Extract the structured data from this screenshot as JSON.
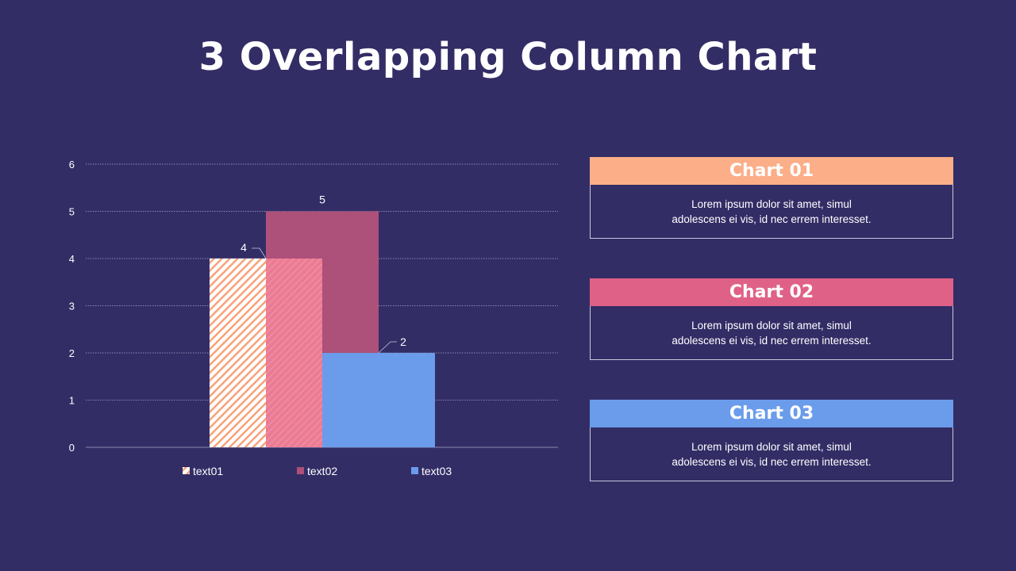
{
  "title": "3 Overlapping Column Chart",
  "chart_data": {
    "type": "bar",
    "categories": [
      "text01",
      "text02",
      "text03"
    ],
    "values": [
      4,
      5,
      2
    ],
    "data_labels": [
      "4",
      "5",
      "2"
    ],
    "ylim": [
      0,
      6
    ],
    "yticks": [
      "0",
      "1",
      "2",
      "3",
      "4",
      "5",
      "6"
    ],
    "grid": true,
    "legend": "bottom",
    "colors": {
      "text01": "#f7a27a",
      "text02": "#ad507a",
      "text03": "#6a9ceb",
      "overlap": "#ec7b94"
    }
  },
  "cards": [
    {
      "title": "Chart 01",
      "text": "Lorem  ipsum dolor sit amet,  simul\nadolescens ei vis, id nec errem  interesset.",
      "color": "#fbae87"
    },
    {
      "title": "Chart 02",
      "text": "Lorem  ipsum dolor sit amet,  simul\nadolescens ei vis, id nec errem  interesset.",
      "color": "#e06187"
    },
    {
      "title": "Chart 03",
      "text": "Lorem  ipsum dolor sit amet,  simul\nadolescens ei vis, id nec errem  interesset.",
      "color": "#6a9ceb"
    }
  ]
}
